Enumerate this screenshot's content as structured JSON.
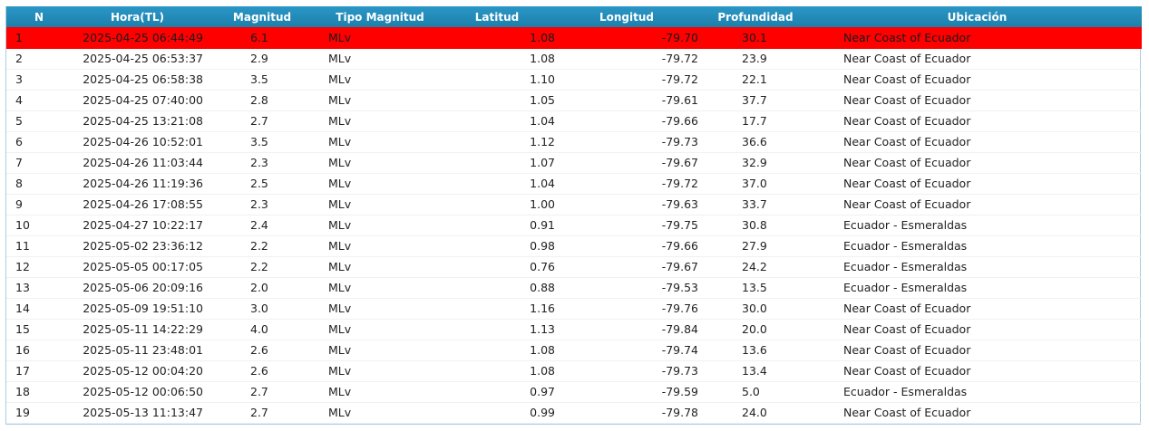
{
  "table": {
    "headers": [
      "N",
      "Hora(TL)",
      "Magnitud",
      "Tipo Magnitud",
      "Latitud",
      "Longitud",
      "Profundidad",
      "Ubicación"
    ],
    "rows": [
      {
        "n": "1",
        "hora": "2025-04-25 06:44:49",
        "magnitud": "6.1",
        "tipo": "MLv",
        "latitud": "1.08",
        "longitud": "-79.70",
        "profundidad": "30.1",
        "ubicacion": "Near Coast of Ecuador",
        "highlighted": true
      },
      {
        "n": "2",
        "hora": "2025-04-25 06:53:37",
        "magnitud": "2.9",
        "tipo": "MLv",
        "latitud": "1.08",
        "longitud": "-79.72",
        "profundidad": "23.9",
        "ubicacion": "Near Coast of Ecuador"
      },
      {
        "n": "3",
        "hora": "2025-04-25 06:58:38",
        "magnitud": "3.5",
        "tipo": "MLv",
        "latitud": "1.10",
        "longitud": "-79.72",
        "profundidad": "22.1",
        "ubicacion": "Near Coast of Ecuador"
      },
      {
        "n": "4",
        "hora": "2025-04-25 07:40:00",
        "magnitud": "2.8",
        "tipo": "MLv",
        "latitud": "1.05",
        "longitud": "-79.61",
        "profundidad": "37.7",
        "ubicacion": "Near Coast of Ecuador"
      },
      {
        "n": "5",
        "hora": "2025-04-25 13:21:08",
        "magnitud": "2.7",
        "tipo": "MLv",
        "latitud": "1.04",
        "longitud": "-79.66",
        "profundidad": "17.7",
        "ubicacion": "Near Coast of Ecuador"
      },
      {
        "n": "6",
        "hora": "2025-04-26 10:52:01",
        "magnitud": "3.5",
        "tipo": "MLv",
        "latitud": "1.12",
        "longitud": "-79.73",
        "profundidad": "36.6",
        "ubicacion": "Near Coast of Ecuador"
      },
      {
        "n": "7",
        "hora": "2025-04-26 11:03:44",
        "magnitud": "2.3",
        "tipo": "MLv",
        "latitud": "1.07",
        "longitud": "-79.67",
        "profundidad": "32.9",
        "ubicacion": "Near Coast of Ecuador"
      },
      {
        "n": "8",
        "hora": "2025-04-26 11:19:36",
        "magnitud": "2.5",
        "tipo": "MLv",
        "latitud": "1.04",
        "longitud": "-79.72",
        "profundidad": "37.0",
        "ubicacion": "Near Coast of Ecuador"
      },
      {
        "n": "9",
        "hora": "2025-04-26 17:08:55",
        "magnitud": "2.3",
        "tipo": "MLv",
        "latitud": "1.00",
        "longitud": "-79.63",
        "profundidad": "33.7",
        "ubicacion": "Near Coast of Ecuador"
      },
      {
        "n": "10",
        "hora": "2025-04-27 10:22:17",
        "magnitud": "2.4",
        "tipo": "MLv",
        "latitud": "0.91",
        "longitud": "-79.75",
        "profundidad": "30.8",
        "ubicacion": "Ecuador - Esmeraldas"
      },
      {
        "n": "11",
        "hora": "2025-05-02 23:36:12",
        "magnitud": "2.2",
        "tipo": "MLv",
        "latitud": "0.98",
        "longitud": "-79.66",
        "profundidad": "27.9",
        "ubicacion": "Ecuador - Esmeraldas"
      },
      {
        "n": "12",
        "hora": "2025-05-05 00:17:05",
        "magnitud": "2.2",
        "tipo": "MLv",
        "latitud": "0.76",
        "longitud": "-79.67",
        "profundidad": "24.2",
        "ubicacion": "Ecuador - Esmeraldas"
      },
      {
        "n": "13",
        "hora": "2025-05-06 20:09:16",
        "magnitud": "2.0",
        "tipo": "MLv",
        "latitud": "0.88",
        "longitud": "-79.53",
        "profundidad": "13.5",
        "ubicacion": "Ecuador - Esmeraldas"
      },
      {
        "n": "14",
        "hora": "2025-05-09 19:51:10",
        "magnitud": "3.0",
        "tipo": "MLv",
        "latitud": "1.16",
        "longitud": "-79.76",
        "profundidad": "30.0",
        "ubicacion": "Near Coast of Ecuador"
      },
      {
        "n": "15",
        "hora": "2025-05-11 14:22:29",
        "magnitud": "4.0",
        "tipo": "MLv",
        "latitud": "1.13",
        "longitud": "-79.84",
        "profundidad": "20.0",
        "ubicacion": "Near Coast of Ecuador"
      },
      {
        "n": "16",
        "hora": "2025-05-11 23:48:01",
        "magnitud": "2.6",
        "tipo": "MLv",
        "latitud": "1.08",
        "longitud": "-79.74",
        "profundidad": "13.6",
        "ubicacion": "Near Coast of Ecuador"
      },
      {
        "n": "17",
        "hora": "2025-05-12 00:04:20",
        "magnitud": "2.6",
        "tipo": "MLv",
        "latitud": "1.08",
        "longitud": "-79.73",
        "profundidad": "13.4",
        "ubicacion": "Near Coast of Ecuador"
      },
      {
        "n": "18",
        "hora": "2025-05-12 00:06:50",
        "magnitud": "2.7",
        "tipo": "MLv",
        "latitud": "0.97",
        "longitud": "-79.59",
        "profundidad": "5.0",
        "ubicacion": "Ecuador - Esmeraldas"
      },
      {
        "n": "19",
        "hora": "2025-05-13 11:13:47",
        "magnitud": "2.7",
        "tipo": "MLv",
        "latitud": "0.99",
        "longitud": "-79.78",
        "profundidad": "24.0",
        "ubicacion": "Near Coast of Ecuador"
      }
    ]
  },
  "colors": {
    "header_bg": "#2289b8",
    "highlight_row": "#ff0000",
    "border": "#aacde3"
  }
}
